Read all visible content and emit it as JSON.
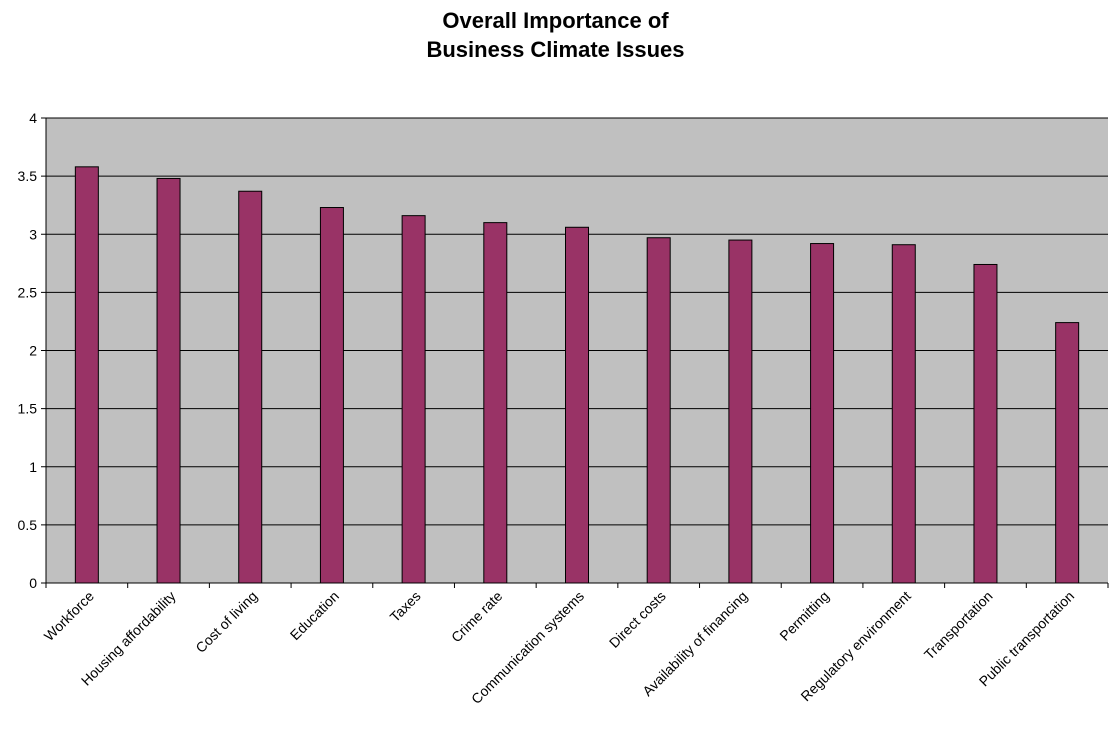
{
  "chart_data": {
    "type": "bar",
    "title_lines": [
      "Overall Importance of",
      "Business Climate Issues"
    ],
    "categories": [
      "Workforce",
      "Housing affordability",
      "Cost of living",
      "Education",
      "Taxes",
      "Crime rate",
      "Communication systems",
      "Direct costs",
      "Availability of financing",
      "Permitting",
      "Regulatory environment",
      "Transportation",
      "Public transportation"
    ],
    "values": [
      3.58,
      3.48,
      3.37,
      3.23,
      3.16,
      3.1,
      3.06,
      2.97,
      2.95,
      2.92,
      2.91,
      2.74,
      2.24
    ],
    "ylim": [
      0,
      4
    ],
    "yticks": [
      "0",
      "0.5",
      "1",
      "1.5",
      "2",
      "2.5",
      "3",
      "3.5",
      "4"
    ],
    "grid": true,
    "legend": "none",
    "colors": {
      "bar_fill": "#993366",
      "bar_stroke": "#000000",
      "plot_background": "#c0c0c0",
      "gridline": "#000000"
    }
  }
}
